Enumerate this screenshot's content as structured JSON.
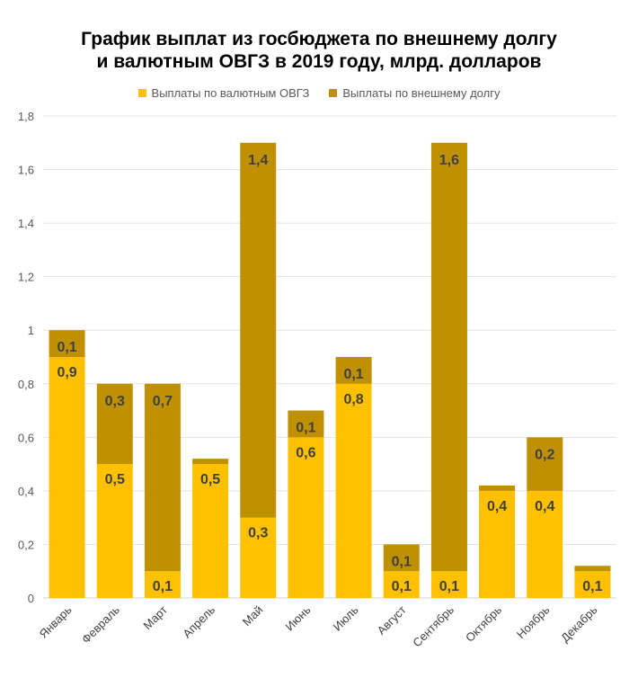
{
  "chart_data": {
    "type": "bar",
    "stacked": true,
    "title_line1": "График выплат из госбюджета по внешнему долгу",
    "title_line2": "и валютным ОВГЗ в 2019 году, млрд. долларов",
    "xlabel": "",
    "ylabel": "",
    "ylim": [
      0,
      1.8
    ],
    "yticks": [
      "0",
      "0,2",
      "0,4",
      "0,6",
      "0,8",
      "1",
      "1,2",
      "1,4",
      "1,6",
      "1,8"
    ],
    "grid": true,
    "legend_position": "top",
    "categories": [
      "Январь",
      "Февраль",
      "Март",
      "Апрель",
      "Май",
      "Июнь",
      "Июль",
      "Август",
      "Сентябрь",
      "Октябрь",
      "Ноябрь",
      "Декабрь"
    ],
    "series": [
      {
        "name": "Выплаты по валютным ОВГЗ",
        "color": "#FFC000",
        "values": [
          0.9,
          0.5,
          0.1,
          0.5,
          0.3,
          0.6,
          0.8,
          0.1,
          0.1,
          0.4,
          0.4,
          0.1
        ],
        "labels": [
          "0,9",
          "0,5",
          "0,1",
          "0,5",
          "0,3",
          "0,6",
          "0,8",
          "0,1",
          "0,1",
          "0,4",
          "0,4",
          "0,1"
        ]
      },
      {
        "name": "Выплаты по внешнему долгу",
        "color": "#BF9000",
        "values": [
          0.1,
          0.3,
          0.7,
          0.02,
          1.4,
          0.1,
          0.1,
          0.1,
          1.6,
          0.02,
          0.2,
          0.02
        ],
        "labels": [
          "0,1",
          "0,3",
          "0,7",
          "",
          "1,4",
          "0,1",
          "0,1",
          "0,1",
          "1,6",
          "",
          "0,2",
          ""
        ]
      }
    ]
  }
}
